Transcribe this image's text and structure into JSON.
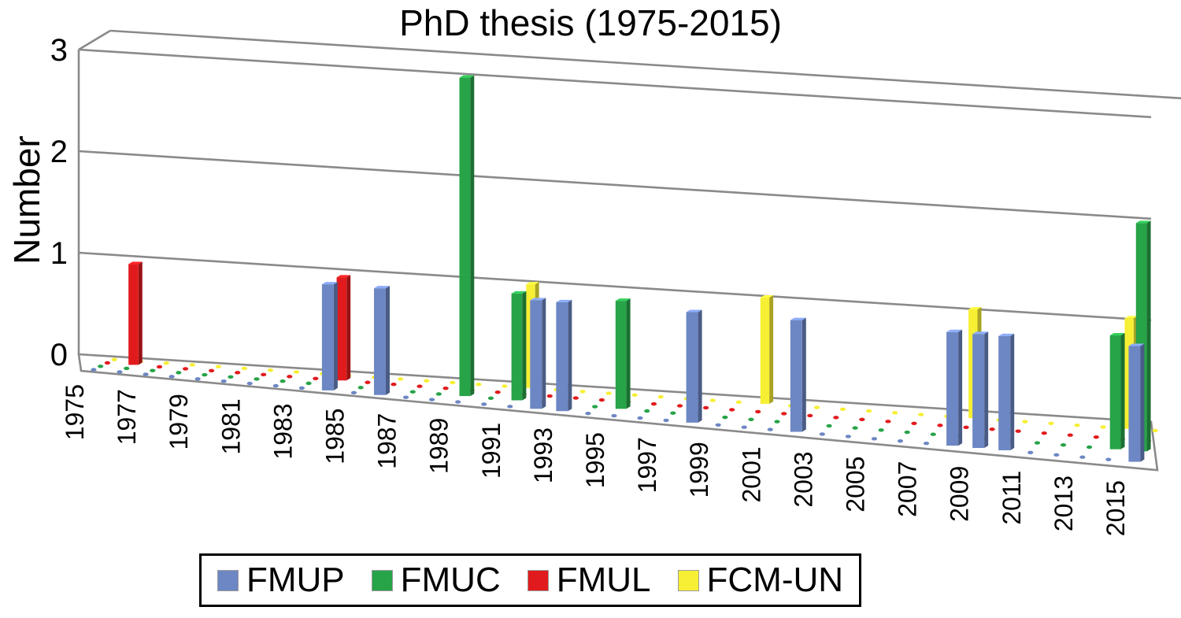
{
  "title": "PhD thesis (1975-2015)",
  "y_axis": {
    "label": "Number",
    "tick_labels": [
      "0",
      "1",
      "2",
      "3"
    ],
    "max": 3
  },
  "x_axis": {
    "tick_labels": [
      "1975",
      "1977",
      "1979",
      "1981",
      "1983",
      "1985",
      "1987",
      "1989",
      "1991",
      "1993",
      "1995",
      "1997",
      "1999",
      "2001",
      "2003",
      "2005",
      "2007",
      "2009",
      "2011",
      "2013",
      "2015"
    ],
    "year_start": 1975,
    "year_end": 2015
  },
  "chart_data": {
    "type": "bar",
    "style": "3d-column",
    "title": "PhD thesis (1975-2015)",
    "xlabel": "",
    "ylabel": "Number",
    "ylim": [
      0,
      3
    ],
    "y_gridlines": [
      1,
      2,
      3
    ],
    "legend_position": "bottom",
    "x_range_years": [
      1975,
      2015
    ],
    "unlisted_values": 0,
    "series": [
      {
        "name": "FMUP",
        "color": "#6d87c4",
        "points": {
          "1984": 1,
          "1986": 1,
          "1992": 1,
          "1993": 1,
          "1998": 1,
          "2002": 1,
          "2008": 1,
          "2009": 1,
          "2010": 1,
          "2015": 1
        }
      },
      {
        "name": "FMUC",
        "color": "#27a348",
        "points": {
          "1989": 3,
          "1991": 1,
          "1995": 1,
          "2014": 1,
          "2015": 2
        }
      },
      {
        "name": "FMUL",
        "color": "#e11b1d",
        "points": {
          "1976": 1,
          "1984": 1
        }
      },
      {
        "name": "FCM-UN",
        "color": "#f7ef34",
        "points": {
          "1991": 1,
          "2000": 1,
          "2008": 1,
          "2014": 1
        }
      }
    ]
  }
}
